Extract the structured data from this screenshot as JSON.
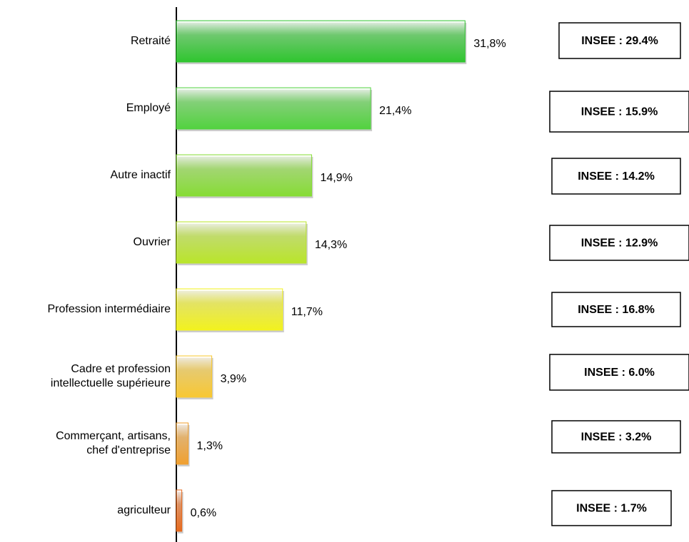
{
  "chart_data": {
    "type": "bar",
    "orientation": "horizontal",
    "categories": [
      "Retraité",
      "Employé",
      "Autre inactif",
      "Ouvrier",
      "Profession intermédiaire",
      "Cadre et profession\nintellectuelle supérieure",
      "Commerçant, artisans,\nchef d'entreprise",
      "agriculteur"
    ],
    "values": [
      31.8,
      21.4,
      14.9,
      14.3,
      11.7,
      3.9,
      1.3,
      0.6
    ],
    "value_labels": [
      "31,8%",
      "21,4%",
      "14,9%",
      "14,3%",
      "11,7%",
      "3,9%",
      "1,3%",
      "0,6%"
    ],
    "colors": [
      "#2fc52f",
      "#52d23f",
      "#86dc35",
      "#b9e52a",
      "#f2f21e",
      "#f8c832",
      "#f0a030",
      "#e66a1e"
    ],
    "xlim": [
      0,
      35
    ],
    "annotations": [
      "INSEE : 29.4%",
      "INSEE : 15.9%",
      "INSEE : 14.2%",
      "INSEE : 12.9%",
      "INSEE : 16.8%",
      "INSEE : 6.0%",
      "INSEE : 3.2%",
      "INSEE : 1.7%"
    ]
  }
}
